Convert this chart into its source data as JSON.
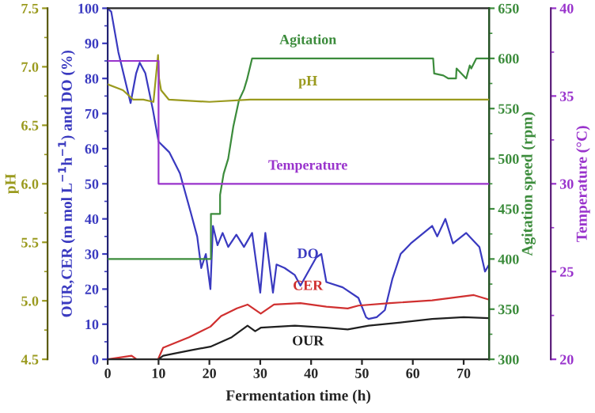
{
  "chart_data": [
    {
      "type": "line",
      "xlabel": "Fermentation time (h)",
      "ylabel": "OUR,CER (m mol L$^{−1}$h$^{−1}$) and DO (%)",
      "y2label": "Agitation speed (rpm)",
      "y3label": "pH",
      "xlim": [
        0,
        75
      ],
      "xticks": [
        0,
        10,
        20,
        30,
        40,
        50,
        60,
        70
      ],
      "ylim": [
        0,
        100
      ],
      "yticks": [
        0,
        10,
        20,
        30,
        40,
        50,
        60,
        70,
        80,
        90,
        100
      ],
      "y2lim": [
        300,
        650
      ],
      "y2ticks": [
        300,
        350,
        400,
        450,
        500,
        550,
        600,
        650
      ],
      "y3lim": [
        4.5,
        7.5
      ],
      "y3ticks": [
        4.5,
        {
          "value": 5,
          "label": "5.0"
        },
        5.5,
        {
          "value": 6,
          "label": "6.0"
        },
        6.5,
        {
          "value": 7,
          "label": "7.0"
        },
        7.5
      ],
      "grid": false,
      "legend": false,
      "marker": "none",
      "line_style": "solid",
      "series": [
        {
          "name": "DO",
          "color": "#3a3ac0",
          "axis": "y",
          "x": [
            0,
            0.7,
            2.1,
            4.5,
            5.6,
            6.3,
            7.4,
            8.9,
            10,
            12.1,
            14.2,
            16.3,
            17.6,
            18.4,
            19.3,
            20.2,
            20.7,
            21.6,
            22.6,
            23.7,
            25.3,
            26.8,
            28.4,
            30,
            31,
            32.5,
            33.2,
            34.8,
            36.8,
            37.9,
            41,
            42,
            43,
            46.2,
            49.3,
            50.8,
            51.3,
            52.9,
            54.5,
            56,
            57.6,
            59.6,
            63.8,
            64.8,
            66.4,
            67.9,
            70.5,
            73.1,
            74.2,
            75
          ],
          "values": [
            100,
            99,
            87.5,
            73,
            81.5,
            84.5,
            81.5,
            71,
            62,
            59,
            53,
            42,
            35,
            26,
            30,
            20,
            38,
            32.5,
            36,
            32,
            35.5,
            32,
            36,
            19,
            36,
            19,
            27,
            26,
            24,
            21,
            29,
            30,
            22,
            20.5,
            17.5,
            12,
            11.5,
            12,
            14,
            23,
            30,
            33,
            38,
            35,
            40,
            33,
            36,
            32,
            25,
            27
          ]
        },
        {
          "name": "CER",
          "color": "#d03030",
          "axis": "y",
          "x": [
            0,
            4.7,
            5.7,
            9.9,
            10.9,
            16,
            20.2,
            22.3,
            25.4,
            27.5,
            30.1,
            32.7,
            37.9,
            43,
            47.2,
            49.3,
            55.5,
            63.8,
            72,
            75
          ],
          "values": [
            0,
            1,
            0,
            0,
            3.3,
            6.3,
            9.3,
            12.3,
            14.5,
            15.6,
            13,
            15.6,
            16,
            15,
            14.5,
            15.3,
            16,
            16.8,
            18.3,
            17
          ]
        },
        {
          "name": "OUR",
          "color": "#202020",
          "axis": "y",
          "x": [
            0,
            10,
            10.9,
            16,
            20.2,
            24.4,
            27.5,
            29,
            30.1,
            36.8,
            43,
            47.2,
            51.3,
            57.6,
            63.8,
            70,
            75
          ],
          "values": [
            0,
            0,
            1,
            2.5,
            3.6,
            6.3,
            9.6,
            8,
            9,
            9.6,
            9,
            8.5,
            9.6,
            10.5,
            11.5,
            12,
            11.7
          ]
        },
        {
          "name": "pH",
          "color": "#9a9a1e",
          "axis": "y3",
          "x": [
            0,
            3,
            5,
            7,
            9,
            9.9,
            10.1,
            10.5,
            12,
            20,
            28,
            75
          ],
          "values": [
            6.85,
            6.8,
            6.72,
            6.72,
            6.7,
            7.1,
            6.9,
            6.8,
            6.72,
            6.7,
            6.72,
            6.72
          ]
        },
        {
          "name": "Agitation",
          "color": "#3c8c3c",
          "axis": "y2",
          "x": [
            0,
            20.3,
            20.3,
            22.1,
            22.1,
            22.8,
            23.7,
            24.7,
            25.8,
            26.8,
            27.4,
            28.4,
            64,
            64.2,
            66,
            67,
            68.5,
            68.6,
            70.5,
            71.2,
            71.5,
            72.5,
            75
          ],
          "values": [
            400,
            400,
            445,
            445,
            464,
            485,
            500,
            532,
            558,
            569,
            579,
            600,
            600,
            585,
            583,
            580,
            580,
            590,
            580,
            593,
            590,
            600,
            600
          ]
        }
      ]
    },
    {
      "type": "line",
      "ylabel": "Temperature (°C)",
      "xlim": [
        0,
        75
      ],
      "ylim": [
        20,
        40
      ],
      "yticks": [
        20,
        25,
        30,
        35,
        40
      ],
      "tick_labels": "y",
      "series": [
        {
          "name": "Temperature",
          "color": "#9933cc",
          "x": [
            0,
            10,
            10,
            75
          ],
          "values": [
            37,
            37,
            30,
            30
          ]
        }
      ]
    }
  ]
}
